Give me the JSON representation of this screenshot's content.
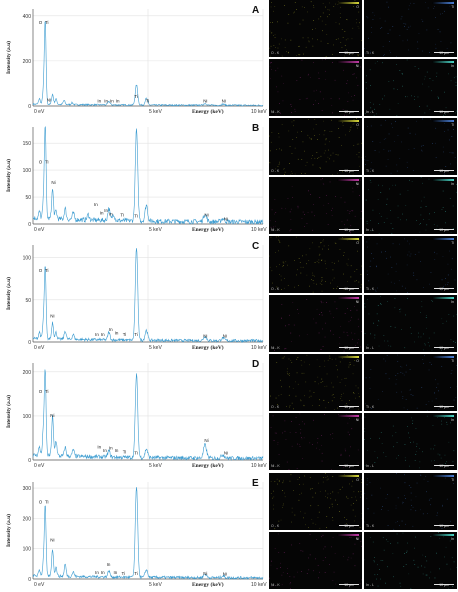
{
  "chart_data": [
    {
      "type": "line",
      "panel_letter": "A",
      "ylabel": "Intensity (a.u)",
      "xlabel": "Energy (keV)",
      "x_tick_labels": [
        "0 eV",
        "5 keV",
        "10 keV"
      ],
      "xlim": [
        0,
        10
      ],
      "ylim": [
        0,
        430
      ],
      "y_ticks": [
        0,
        200,
        400
      ],
      "grid": true,
      "peaks": [
        {
          "x": 0.28,
          "y": 25
        },
        {
          "x": 0.45,
          "y": 55
        },
        {
          "x": 0.53,
          "y": 370
        },
        {
          "x": 0.85,
          "y": 45
        },
        {
          "x": 1.0,
          "y": 25
        },
        {
          "x": 1.35,
          "y": 18
        },
        {
          "x": 1.7,
          "y": 8
        },
        {
          "x": 3.3,
          "y": 15
        },
        {
          "x": 4.5,
          "y": 90
        },
        {
          "x": 4.93,
          "y": 30
        },
        {
          "x": 7.48,
          "y": 8
        },
        {
          "x": 8.26,
          "y": 5
        }
      ],
      "background": 6,
      "annotations": [
        {
          "text": "O",
          "x": 0.25,
          "y": 360
        },
        {
          "text": "Ti",
          "x": 0.52,
          "y": 360
        },
        {
          "text": "Ni",
          "x": 0.6,
          "y": 16
        },
        {
          "text": "In",
          "x": 2.8,
          "y": 12
        },
        {
          "text": "In",
          "x": 3.1,
          "y": 12
        },
        {
          "text": "In",
          "x": 3.35,
          "y": 12
        },
        {
          "text": "In",
          "x": 3.6,
          "y": 12
        },
        {
          "text": "Ti",
          "x": 4.4,
          "y": 30
        },
        {
          "text": "Ti",
          "x": 4.9,
          "y": 12
        },
        {
          "text": "Ni",
          "x": 7.4,
          "y": 12
        },
        {
          "text": "Ni",
          "x": 8.2,
          "y": 12
        }
      ]
    },
    {
      "type": "line",
      "panel_letter": "B",
      "ylabel": "Intensity (a.u)",
      "xlabel": "Energy (keV)",
      "x_tick_labels": [
        "0 eV",
        "5 keV",
        "10 keV"
      ],
      "xlim": [
        0,
        10
      ],
      "ylim": [
        0,
        180
      ],
      "y_ticks": [
        0,
        50,
        100,
        150
      ],
      "grid": true,
      "peaks": [
        {
          "x": 0.28,
          "y": 12
        },
        {
          "x": 0.45,
          "y": 25
        },
        {
          "x": 0.53,
          "y": 175
        },
        {
          "x": 0.85,
          "y": 55
        },
        {
          "x": 1.0,
          "y": 15
        },
        {
          "x": 1.4,
          "y": 20
        },
        {
          "x": 1.75,
          "y": 12
        },
        {
          "x": 2.4,
          "y": 10
        },
        {
          "x": 3.3,
          "y": 22
        },
        {
          "x": 3.5,
          "y": 12
        },
        {
          "x": 4.5,
          "y": 170
        },
        {
          "x": 4.93,
          "y": 30
        },
        {
          "x": 7.48,
          "y": 14
        },
        {
          "x": 8.26,
          "y": 6
        }
      ],
      "background": 8,
      "annotations": [
        {
          "text": "O",
          "x": 0.25,
          "y": 110
        },
        {
          "text": "Ti",
          "x": 0.52,
          "y": 110
        },
        {
          "text": "Ni",
          "x": 0.8,
          "y": 72
        },
        {
          "text": "In",
          "x": 2.65,
          "y": 32
        },
        {
          "text": "In",
          "x": 2.9,
          "y": 16
        },
        {
          "text": "In",
          "x": 3.1,
          "y": 20
        },
        {
          "text": "In",
          "x": 3.3,
          "y": 14
        },
        {
          "text": "Ti",
          "x": 3.8,
          "y": 12
        },
        {
          "text": "Ti",
          "x": 4.4,
          "y": 10
        },
        {
          "text": "Ni",
          "x": 7.45,
          "y": 12
        },
        {
          "text": "Ni",
          "x": 8.3,
          "y": 5
        }
      ]
    },
    {
      "type": "line",
      "panel_letter": "C",
      "ylabel": "Intensity (a.u)",
      "xlabel": "Energy (keV)",
      "x_tick_labels": [
        "0 eV",
        "5 keV",
        "10 keV"
      ],
      "xlim": [
        0,
        10
      ],
      "ylim": [
        0,
        115
      ],
      "y_ticks": [
        0,
        50,
        100
      ],
      "grid": true,
      "peaks": [
        {
          "x": 0.28,
          "y": 8
        },
        {
          "x": 0.45,
          "y": 18
        },
        {
          "x": 0.53,
          "y": 85
        },
        {
          "x": 0.85,
          "y": 20
        },
        {
          "x": 1.0,
          "y": 8
        },
        {
          "x": 1.4,
          "y": 10
        },
        {
          "x": 1.75,
          "y": 6
        },
        {
          "x": 3.3,
          "y": 9
        },
        {
          "x": 4.5,
          "y": 110
        },
        {
          "x": 4.93,
          "y": 12
        },
        {
          "x": 7.48,
          "y": 5
        },
        {
          "x": 8.26,
          "y": 3
        }
      ],
      "background": 3,
      "annotations": [
        {
          "text": "O",
          "x": 0.25,
          "y": 82
        },
        {
          "text": "Ti",
          "x": 0.52,
          "y": 82
        },
        {
          "text": "Ni",
          "x": 0.75,
          "y": 28
        },
        {
          "text": "In",
          "x": 2.7,
          "y": 6
        },
        {
          "text": "In",
          "x": 2.95,
          "y": 6
        },
        {
          "text": "In",
          "x": 3.3,
          "y": 12
        },
        {
          "text": "In",
          "x": 3.55,
          "y": 8
        },
        {
          "text": "Ti",
          "x": 3.9,
          "y": 6
        },
        {
          "text": "Ti",
          "x": 4.4,
          "y": 6
        },
        {
          "text": "Ni",
          "x": 7.4,
          "y": 4
        },
        {
          "text": "Ni",
          "x": 8.25,
          "y": 4
        }
      ]
    },
    {
      "type": "line",
      "panel_letter": "D",
      "ylabel": "Intensity (a.u)",
      "xlabel": "Energy (keV)",
      "x_tick_labels": [
        "0 eV",
        "5 keV",
        "10 keV"
      ],
      "xlim": [
        0,
        10
      ],
      "ylim": [
        0,
        220
      ],
      "y_ticks": [
        0,
        100,
        200
      ],
      "grid": true,
      "peaks": [
        {
          "x": 0.28,
          "y": 20
        },
        {
          "x": 0.45,
          "y": 55
        },
        {
          "x": 0.53,
          "y": 190
        },
        {
          "x": 0.85,
          "y": 90
        },
        {
          "x": 1.0,
          "y": 35
        },
        {
          "x": 1.4,
          "y": 20
        },
        {
          "x": 1.75,
          "y": 15
        },
        {
          "x": 3.3,
          "y": 14
        },
        {
          "x": 4.5,
          "y": 190
        },
        {
          "x": 4.93,
          "y": 20
        },
        {
          "x": 7.48,
          "y": 30
        },
        {
          "x": 8.26,
          "y": 8
        }
      ],
      "background": 8,
      "annotations": [
        {
          "text": "O",
          "x": 0.25,
          "y": 150
        },
        {
          "text": "Ti",
          "x": 0.52,
          "y": 150
        },
        {
          "text": "Ni",
          "x": 0.75,
          "y": 95
        },
        {
          "text": "In",
          "x": 2.8,
          "y": 24
        },
        {
          "text": "In",
          "x": 3.05,
          "y": 16
        },
        {
          "text": "In",
          "x": 3.3,
          "y": 22
        },
        {
          "text": "In",
          "x": 3.55,
          "y": 16
        },
        {
          "text": "Ti",
          "x": 3.9,
          "y": 12
        },
        {
          "text": "Ti",
          "x": 4.4,
          "y": 10
        },
        {
          "text": "Ni",
          "x": 7.45,
          "y": 38
        },
        {
          "text": "Ni",
          "x": 8.3,
          "y": 10
        }
      ]
    },
    {
      "type": "line",
      "panel_letter": "E",
      "ylabel": "Intensity (a.u)",
      "xlabel": "Energy (keV)",
      "x_tick_labels": [
        "0 eV",
        "5 keV",
        "10 keV"
      ],
      "xlim": [
        0,
        10
      ],
      "ylim": [
        0,
        320
      ],
      "y_ticks": [
        0,
        100,
        200,
        300
      ],
      "grid": true,
      "peaks": [
        {
          "x": 0.28,
          "y": 20
        },
        {
          "x": 0.45,
          "y": 40
        },
        {
          "x": 0.53,
          "y": 230
        },
        {
          "x": 0.85,
          "y": 90
        },
        {
          "x": 1.0,
          "y": 30
        },
        {
          "x": 1.4,
          "y": 40
        },
        {
          "x": 1.75,
          "y": 15
        },
        {
          "x": 3.3,
          "y": 20
        },
        {
          "x": 4.5,
          "y": 300
        },
        {
          "x": 4.93,
          "y": 25
        },
        {
          "x": 7.48,
          "y": 12
        },
        {
          "x": 8.26,
          "y": 6
        }
      ],
      "background": 8,
      "annotations": [
        {
          "text": "O",
          "x": 0.25,
          "y": 245
        },
        {
          "text": "Ti",
          "x": 0.52,
          "y": 245
        },
        {
          "text": "Ni",
          "x": 0.75,
          "y": 120
        },
        {
          "text": "In",
          "x": 2.7,
          "y": 14
        },
        {
          "text": "In",
          "x": 2.95,
          "y": 14
        },
        {
          "text": "In",
          "x": 3.2,
          "y": 40
        },
        {
          "text": "In",
          "x": 3.5,
          "y": 14
        },
        {
          "text": "Ti",
          "x": 3.85,
          "y": 10
        },
        {
          "text": "Ti",
          "x": 4.4,
          "y": 10
        },
        {
          "text": "Ni",
          "x": 7.4,
          "y": 10
        },
        {
          "text": "Ni",
          "x": 8.25,
          "y": 8
        }
      ]
    }
  ],
  "maps": [
    {
      "element": "O",
      "color": "#d8d83a",
      "scale": "10 µm"
    },
    {
      "element": "Ti",
      "color": "#4a7fd6",
      "scale": "10 µm"
    },
    {
      "element": "Ni",
      "color": "#c23aa6",
      "scale": "10 µm"
    },
    {
      "element": "In",
      "color": "#4ad6c7",
      "scale": "10 µm"
    }
  ],
  "map_corner_labels": [
    "O - K",
    "Ti - K",
    "Ni - K",
    "In - L"
  ],
  "colors": {
    "spectrum_line": "#3a9bd0",
    "grid": "#e2e2e2",
    "axis": "#555555",
    "map_background": "#050505"
  }
}
